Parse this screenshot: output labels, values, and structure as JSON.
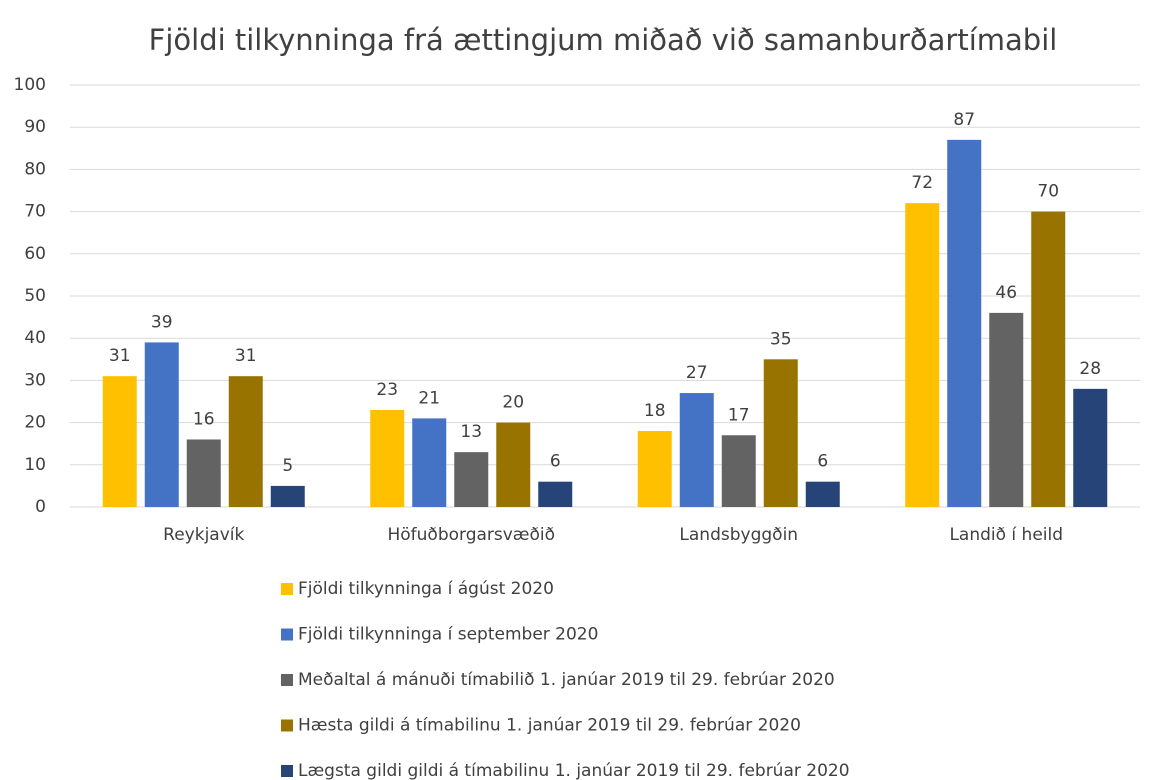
{
  "chart_data": {
    "type": "bar",
    "title": "Fjöldi tilkynninga frá ættingjum miðað við samanburðartímabil",
    "categories": [
      "Reykjavík",
      "Höfuðborgarsvæðið",
      "Landsbyggðin",
      "Landið í heild"
    ],
    "series": [
      {
        "name": "Fjöldi tilkynninga í ágúst 2020",
        "color": "#ffc000",
        "values": [
          31,
          23,
          18,
          72
        ]
      },
      {
        "name": "Fjöldi tilkynninga í september 2020",
        "color": "#4472c4",
        "values": [
          39,
          21,
          27,
          87
        ]
      },
      {
        "name": "Meðaltal á mánuði tímabilið 1. janúar 2019 til 29. febrúar 2020",
        "color": "#636363",
        "values": [
          16,
          13,
          17,
          46
        ]
      },
      {
        "name": "Hæsta gildi á tímabilinu 1. janúar 2019 til 29. febrúar 2020",
        "color": "#997300",
        "values": [
          31,
          20,
          35,
          70
        ]
      },
      {
        "name": "Lægsta gildi gildi á tímabilinu 1. janúar 2019 til 29. febrúar 2020",
        "color": "#264478",
        "values": [
          5,
          6,
          6,
          28
        ]
      }
    ],
    "ylim": [
      0,
      100
    ],
    "yticks": [
      0,
      10,
      20,
      30,
      40,
      50,
      60,
      70,
      80,
      90,
      100
    ],
    "grid": true,
    "legend": "bottom"
  }
}
